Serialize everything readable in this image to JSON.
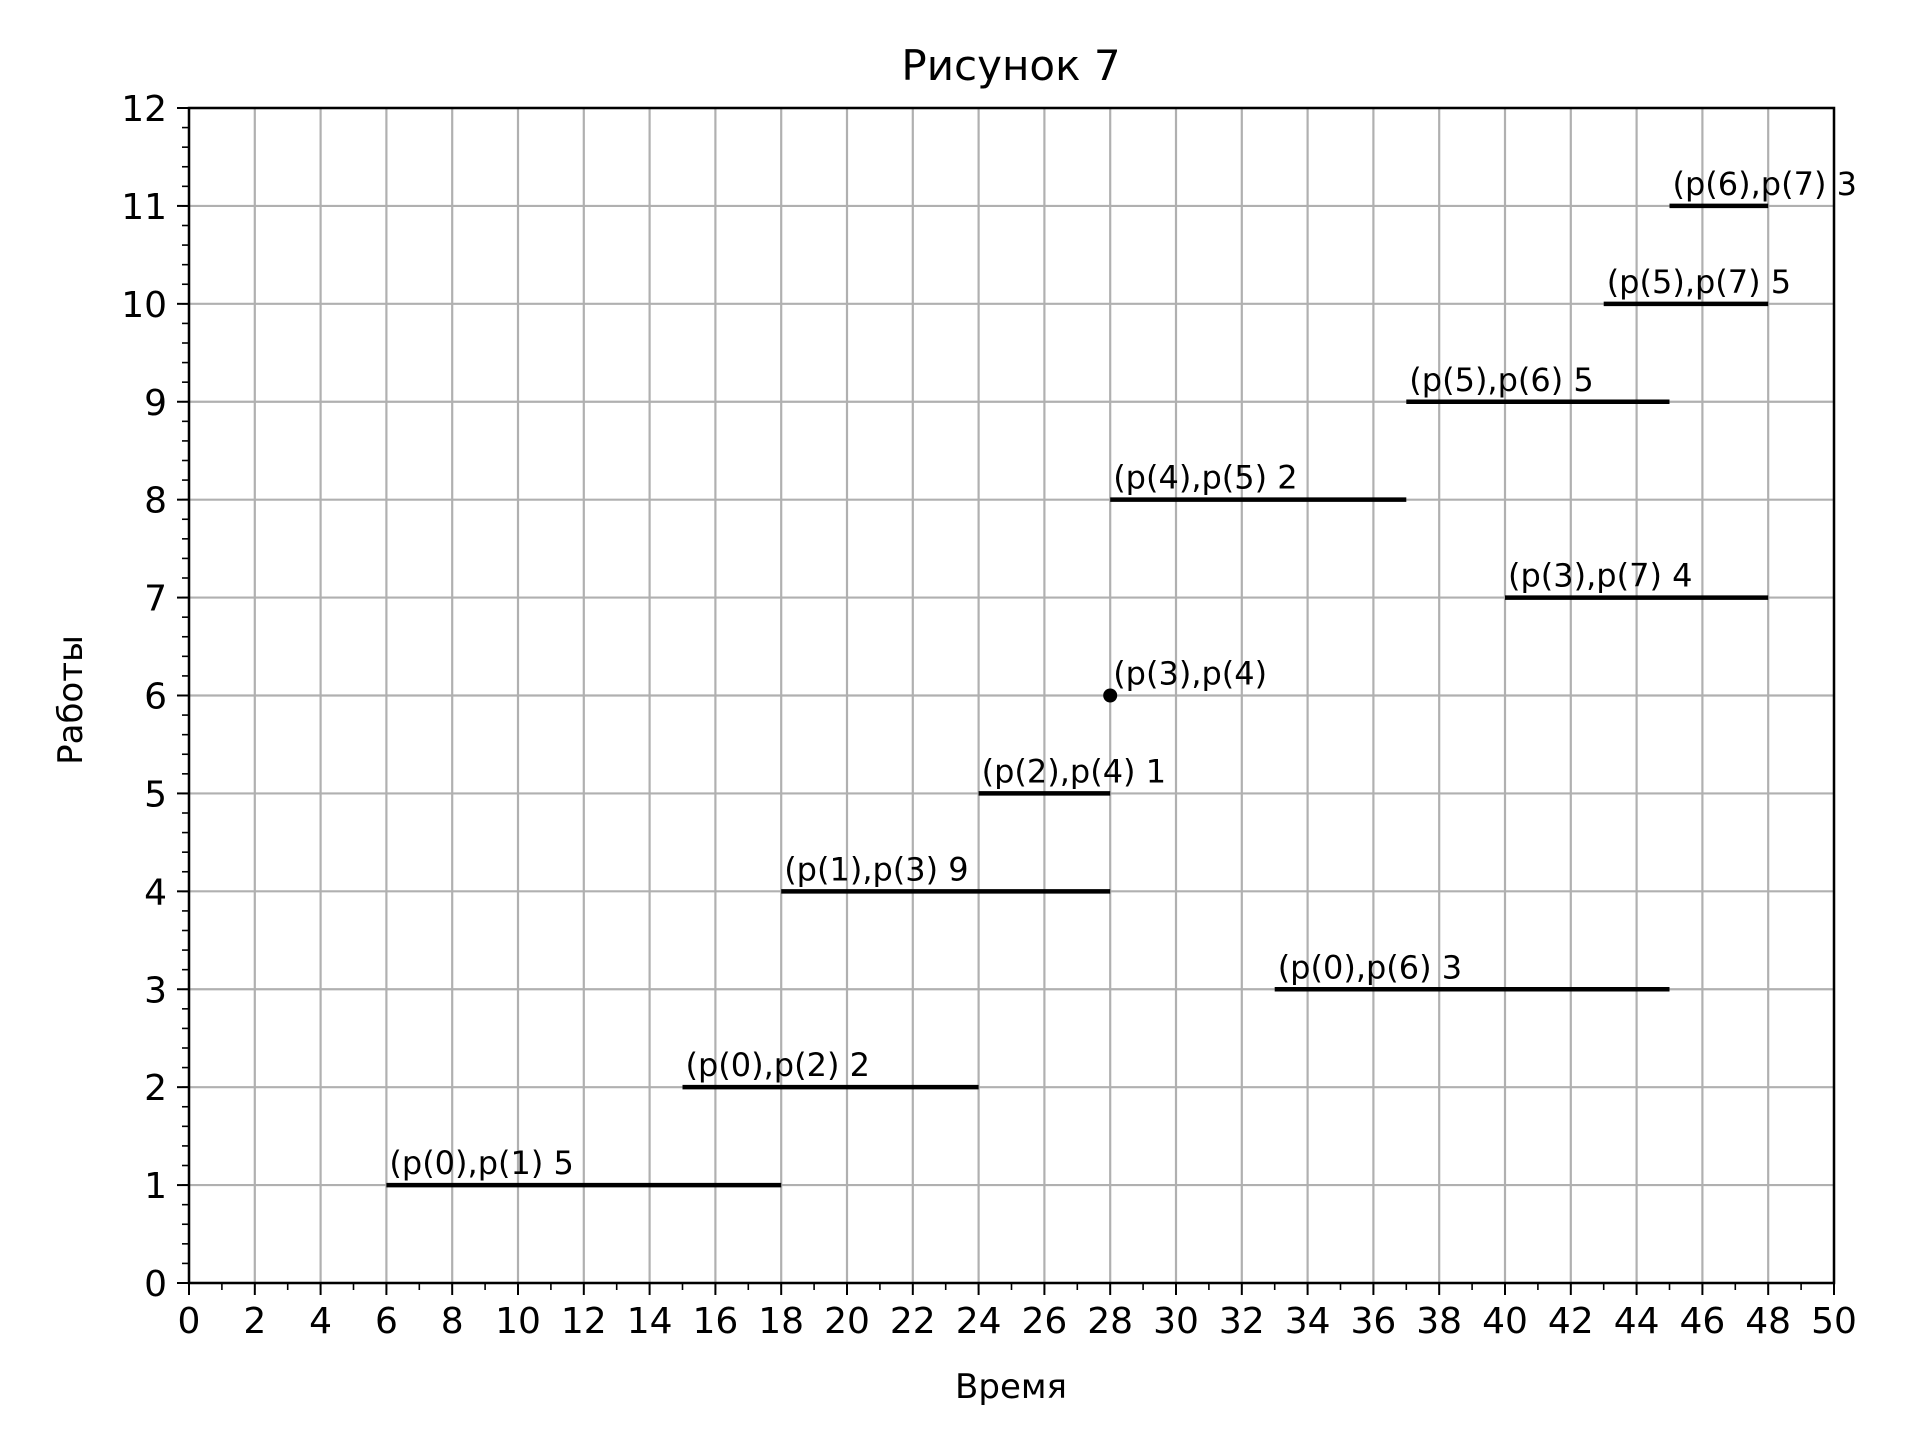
{
  "chart_data": {
    "type": "gantt",
    "title": "Рисунок 7",
    "xlabel": "Время",
    "ylabel": "Работы",
    "xlim": [
      0,
      50
    ],
    "ylim": [
      0,
      12
    ],
    "xticks": [
      0,
      2,
      4,
      6,
      8,
      10,
      12,
      14,
      16,
      18,
      20,
      22,
      24,
      26,
      28,
      30,
      32,
      34,
      36,
      38,
      40,
      42,
      44,
      46,
      48,
      50
    ],
    "yticks": [
      0,
      1,
      2,
      3,
      4,
      5,
      6,
      7,
      8,
      9,
      10,
      11,
      12
    ],
    "x_minor_step": 1,
    "y_minor_step": 0.2,
    "grid": true,
    "colors": {
      "grid": "#b0b0b0",
      "segment": "#000000",
      "axis": "#000000"
    },
    "tasks": [
      {
        "label": "(p(0),p(1) 5",
        "y": 1,
        "start": 6,
        "end": 18
      },
      {
        "label": "(p(0),p(2) 2",
        "y": 2,
        "start": 15,
        "end": 24
      },
      {
        "label": "(p(0),p(6) 3",
        "y": 3,
        "start": 33,
        "end": 45
      },
      {
        "label": "(p(1),p(3) 9",
        "y": 4,
        "start": 18,
        "end": 28
      },
      {
        "label": "(p(2),p(4) 1",
        "y": 5,
        "start": 24,
        "end": 28
      },
      {
        "label": "(p(3),p(4)",
        "y": 6,
        "start": 28,
        "end": 28
      },
      {
        "label": "(p(3),p(7) 4",
        "y": 7,
        "start": 40,
        "end": 48
      },
      {
        "label": "(p(4),p(5) 2",
        "y": 8,
        "start": 28,
        "end": 37
      },
      {
        "label": "(p(5),p(6) 5",
        "y": 9,
        "start": 37,
        "end": 45
      },
      {
        "label": "(p(5),p(7) 5",
        "y": 10,
        "start": 43,
        "end": 48
      },
      {
        "label": "(p(6),p(7) 3",
        "y": 11,
        "start": 45,
        "end": 48
      }
    ]
  }
}
